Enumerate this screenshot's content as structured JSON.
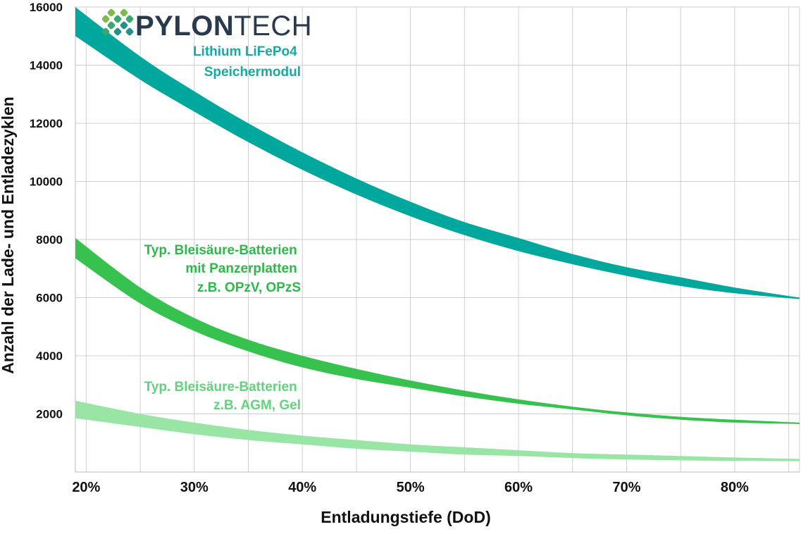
{
  "logo": {
    "brand_strong": "PYLON",
    "brand_light": "TECH",
    "colors": {
      "text": "#2a3a4e",
      "icon_light": "#7dbb4a",
      "icon_mid": "#3aa86f",
      "icon_dark": "#23908d"
    }
  },
  "chart_data": {
    "type": "area",
    "title": "",
    "xlabel": "Entladungstiefe (DoD)",
    "ylabel": "Anzahl der Lade- und Entladezyklen",
    "xlim": [
      0.19,
      0.86
    ],
    "ylim": [
      0,
      16000
    ],
    "grid": true,
    "x_ticks": [
      0.2,
      0.3,
      0.4,
      0.5,
      0.6,
      0.7,
      0.8
    ],
    "x_tick_labels": [
      "20%",
      "30%",
      "40%",
      "50%",
      "60%",
      "70%",
      "80%"
    ],
    "y_ticks": [
      2000,
      4000,
      6000,
      8000,
      10000,
      12000,
      14000,
      16000
    ],
    "y_tick_labels": [
      "2000",
      "4000",
      "6000",
      "8000",
      "10000",
      "12000",
      "14000",
      "16000"
    ],
    "series": [
      {
        "label_lines": [
          "Lithium LiFePo4",
          "Speichermodul"
        ],
        "color": "#00a79d",
        "label_color": "#16aaa2",
        "x": [
          0.19,
          0.25,
          0.3,
          0.35,
          0.4,
          0.45,
          0.5,
          0.55,
          0.6,
          0.65,
          0.7,
          0.75,
          0.8,
          0.86
        ],
        "upper": [
          16000,
          14300,
          13100,
          12000,
          11000,
          10100,
          9300,
          8600,
          8050,
          7500,
          7050,
          6700,
          6350,
          6000
        ],
        "lower": [
          15000,
          13500,
          12400,
          11350,
          10400,
          9550,
          8800,
          8150,
          7600,
          7150,
          6750,
          6400,
          6150,
          5950
        ]
      },
      {
        "label_lines": [
          "Typ. Bleisäure-Batterien",
          "mit Panzerplatten",
          "z.B. OPzV, OPzS"
        ],
        "color": "#37c24f",
        "label_color": "#2fb84a",
        "x": [
          0.19,
          0.25,
          0.3,
          0.35,
          0.4,
          0.45,
          0.5,
          0.55,
          0.6,
          0.65,
          0.7,
          0.75,
          0.8,
          0.86
        ],
        "upper": [
          8050,
          6350,
          5300,
          4550,
          4000,
          3550,
          3150,
          2800,
          2500,
          2250,
          2050,
          1900,
          1800,
          1700
        ],
        "lower": [
          7350,
          5800,
          4850,
          4150,
          3600,
          3200,
          2900,
          2600,
          2350,
          2150,
          1950,
          1800,
          1700,
          1650
        ]
      },
      {
        "label_lines": [
          "Typ. Bleisäure-Batterien",
          "z.B. AGM, Gel"
        ],
        "color": "#98e5a5",
        "label_color": "#62d37c",
        "x": [
          0.19,
          0.25,
          0.3,
          0.35,
          0.4,
          0.45,
          0.5,
          0.55,
          0.6,
          0.65,
          0.7,
          0.75,
          0.8,
          0.86
        ],
        "upper": [
          2450,
          2000,
          1700,
          1450,
          1250,
          1100,
          950,
          850,
          750,
          650,
          600,
          550,
          500,
          450
        ],
        "lower": [
          1850,
          1550,
          1300,
          1100,
          950,
          800,
          700,
          600,
          550,
          480,
          430,
          400,
          380,
          370
        ]
      }
    ]
  }
}
